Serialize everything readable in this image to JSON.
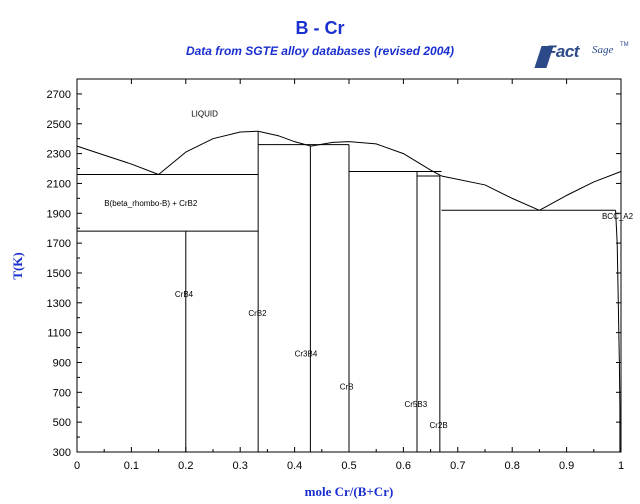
{
  "title": "B - Cr",
  "subtitle": "Data from SGTE alloy databases (revised 2004)",
  "logo": {
    "fact": "Fact",
    "sage": "Sage",
    "tm": "TM"
  },
  "chart_data": {
    "type": "line",
    "title": "B - Cr",
    "subtitle": "Data from SGTE alloy databases (revised 2004)",
    "xlabel": "mole Cr/(B+Cr)",
    "ylabel": "T(K)",
    "xlim": [
      0,
      1
    ],
    "ylim": [
      300,
      2800
    ],
    "xticks": [
      "0",
      "0.1",
      "0.2",
      "0.3",
      "0.4",
      "0.5",
      "0.6",
      "0.7",
      "0.8",
      "0.9",
      "1"
    ],
    "xtick_values": [
      0,
      0.1,
      0.2,
      0.3,
      0.4,
      0.5,
      0.6,
      0.7,
      0.8,
      0.9,
      1
    ],
    "yticks": [
      "300",
      "500",
      "700",
      "900",
      "1100",
      "1300",
      "1500",
      "1700",
      "1900",
      "2100",
      "2300",
      "2500",
      "2700"
    ],
    "ytick_values": [
      300,
      500,
      700,
      900,
      1100,
      1300,
      1500,
      1700,
      1900,
      2100,
      2300,
      2500,
      2700
    ],
    "grid": false,
    "series": [
      {
        "id": "liquidus-b-rich",
        "points": [
          [
            0,
            2350
          ],
          [
            0.05,
            2290
          ],
          [
            0.1,
            2230
          ],
          [
            0.15,
            2160
          ]
        ]
      },
      {
        "id": "liquidus-crb2-left",
        "points": [
          [
            0.15,
            2160
          ],
          [
            0.2,
            2310
          ],
          [
            0.25,
            2400
          ],
          [
            0.3,
            2445
          ],
          [
            0.333,
            2450
          ]
        ]
      },
      {
        "id": "liquidus-crb2-right",
        "points": [
          [
            0.333,
            2450
          ],
          [
            0.37,
            2420
          ],
          [
            0.4,
            2380
          ],
          [
            0.43,
            2350
          ]
        ]
      },
      {
        "id": "liquidus-mid",
        "points": [
          [
            0.43,
            2350
          ],
          [
            0.47,
            2375
          ],
          [
            0.5,
            2380
          ],
          [
            0.55,
            2365
          ],
          [
            0.6,
            2300
          ],
          [
            0.65,
            2190
          ],
          [
            0.67,
            2150
          ]
        ]
      },
      {
        "id": "liquidus-cr2b-right",
        "points": [
          [
            0.67,
            2150
          ],
          [
            0.75,
            2090
          ],
          [
            0.8,
            2000
          ],
          [
            0.85,
            1920
          ]
        ]
      },
      {
        "id": "liquidus-cr-rich",
        "points": [
          [
            0.85,
            1920
          ],
          [
            0.9,
            2020
          ],
          [
            0.95,
            2110
          ],
          [
            1,
            2180
          ]
        ]
      },
      {
        "id": "eutectic-1",
        "points": [
          [
            0,
            2160
          ],
          [
            0.333,
            2160
          ]
        ]
      },
      {
        "id": "eutectic-2",
        "points": [
          [
            0.333,
            2360
          ],
          [
            0.5,
            2360
          ]
        ]
      },
      {
        "id": "eutectic-3",
        "points": [
          [
            0.5,
            2180
          ],
          [
            0.67,
            2180
          ]
        ]
      },
      {
        "id": "eutectic-4",
        "points": [
          [
            0.67,
            1920
          ],
          [
            0.99,
            1920
          ]
        ]
      },
      {
        "id": "peritectic-crb4",
        "points": [
          [
            0,
            1780
          ],
          [
            0.333,
            1780
          ]
        ]
      },
      {
        "id": "peritectic-cr5b3",
        "points": [
          [
            0.625,
            2150
          ],
          [
            0.667,
            2150
          ]
        ]
      },
      {
        "id": "line-crb4",
        "points": [
          [
            0.2,
            300
          ],
          [
            0.2,
            1780
          ]
        ]
      },
      {
        "id": "line-crb2",
        "points": [
          [
            0.333,
            300
          ],
          [
            0.333,
            2450
          ]
        ]
      },
      {
        "id": "line-cr3b4",
        "points": [
          [
            0.429,
            300
          ],
          [
            0.429,
            2350
          ]
        ]
      },
      {
        "id": "line-crb",
        "points": [
          [
            0.5,
            300
          ],
          [
            0.5,
            2360
          ]
        ]
      },
      {
        "id": "line-cr5b3",
        "points": [
          [
            0.625,
            300
          ],
          [
            0.625,
            2180
          ]
        ]
      },
      {
        "id": "line-cr2b",
        "points": [
          [
            0.667,
            300
          ],
          [
            0.667,
            2150
          ]
        ]
      },
      {
        "id": "bcc-solvus",
        "points": [
          [
            0.99,
            1920
          ],
          [
            0.993,
            1700
          ],
          [
            0.995,
            1300
          ],
          [
            0.997,
            900
          ],
          [
            0.998,
            600
          ],
          [
            0.998,
            300
          ]
        ]
      }
    ],
    "annotations": [
      {
        "text": "LIQUID",
        "x": 0.21,
        "y": 2550
      },
      {
        "text": "B(beta_rhombo-B) + CrB2",
        "x": 0.05,
        "y": 1950
      },
      {
        "text": "BCC_A2",
        "x": 0.965,
        "y": 1860
      },
      {
        "text": "CrB4",
        "x": 0.18,
        "y": 1340
      },
      {
        "text": "CrB2",
        "x": 0.315,
        "y": 1210
      },
      {
        "text": "Cr3B4",
        "x": 0.4,
        "y": 940
      },
      {
        "text": "CrB",
        "x": 0.483,
        "y": 720
      },
      {
        "text": "Cr5B3",
        "x": 0.602,
        "y": 600
      },
      {
        "text": "Cr2B",
        "x": 0.648,
        "y": 460
      }
    ]
  }
}
